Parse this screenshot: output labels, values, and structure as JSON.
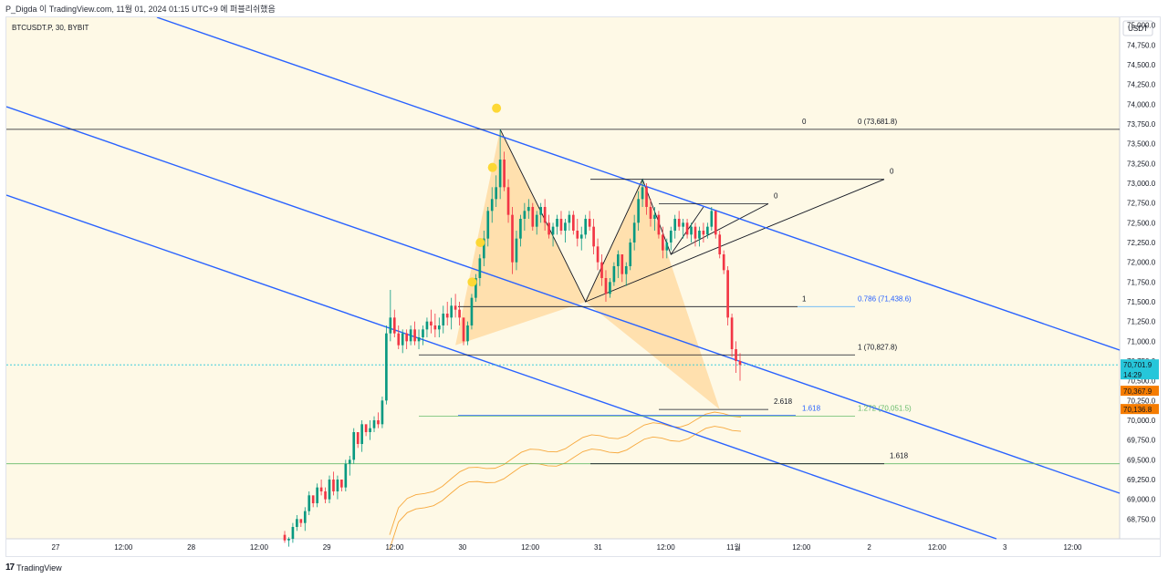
{
  "header": {
    "publish_line": "P_Digda 이 TradingView.com, 11월 01, 2024 01:15 UTC+9 에 퍼블리쉬했음"
  },
  "symbol_label": "BTCUSDT.P, 30, BYBIT",
  "footer": {
    "brand": "TradingView",
    "brand_icon": "tradingview-logo-icon"
  },
  "colors": {
    "background": "#fef9e6",
    "channel": "#2962ff",
    "pattern_fill": "#ffcc80",
    "marker": "#fdd835",
    "up": "#089981",
    "down": "#f23645",
    "ribbon": "#f7a83c",
    "price_badge": "#26c6da",
    "level_badge": "#f57c00"
  },
  "chart_data": {
    "type": "candlestick",
    "symbol": "BTCUSDT.P",
    "interval": "30",
    "exchange": "BYBIT",
    "currency": "USDT",
    "ylim": [
      68500,
      75100
    ],
    "price_ticks": [
      "75,000.0",
      "74,750.0",
      "74,500.0",
      "74,250.0",
      "74,000.0",
      "73,750.0",
      "73,500.0",
      "73,250.0",
      "73,000.0",
      "72,750.0",
      "72,500.0",
      "72,250.0",
      "72,000.0",
      "71,750.0",
      "71,500.0",
      "71,250.0",
      "71,000.0",
      "70,750.0",
      "70,500.0",
      "70,250.0",
      "70,000.0",
      "69,750.0",
      "69,500.0",
      "69,250.0",
      "69,000.0",
      "68,750.0"
    ],
    "time_ticks": [
      "27",
      "12:00",
      "28",
      "12:00",
      "29",
      "12:00",
      "30",
      "12:00",
      "31",
      "12:00",
      "11월",
      "12:00",
      "2",
      "12:00",
      "3",
      "12:00"
    ],
    "candles_ohlc": [
      [
        68550,
        68600,
        68450,
        68480
      ],
      [
        68480,
        68520,
        68400,
        68500
      ],
      [
        68500,
        68700,
        68450,
        68650
      ],
      [
        68650,
        68800,
        68600,
        68750
      ],
      [
        68750,
        68700,
        68650,
        68700
      ],
      [
        68700,
        68900,
        68600,
        68850
      ],
      [
        68850,
        69100,
        68800,
        69050
      ],
      [
        69050,
        69000,
        68900,
        68950
      ],
      [
        68950,
        69200,
        68900,
        69150
      ],
      [
        69150,
        69250,
        69050,
        69100
      ],
      [
        69100,
        69150,
        68950,
        69000
      ],
      [
        69000,
        69300,
        68950,
        69250
      ],
      [
        69250,
        69350,
        69050,
        69100
      ],
      [
        69100,
        69300,
        69000,
        69250
      ],
      [
        69250,
        69200,
        69100,
        69150
      ],
      [
        69150,
        69500,
        69100,
        69450
      ],
      [
        69450,
        69550,
        69300,
        69500
      ],
      [
        69500,
        69900,
        69450,
        69850
      ],
      [
        69850,
        69800,
        69650,
        69700
      ],
      [
        69700,
        70000,
        69600,
        69950
      ],
      [
        69950,
        69900,
        69800,
        69850
      ],
      [
        69850,
        70000,
        69750,
        69900
      ],
      [
        69900,
        70050,
        69850,
        70000
      ],
      [
        70000,
        70100,
        69900,
        69950
      ],
      [
        69950,
        70300,
        69900,
        70250
      ],
      [
        70250,
        71200,
        70200,
        71100
      ],
      [
        71100,
        71650,
        71000,
        71300
      ],
      [
        71300,
        71400,
        71050,
        71100
      ],
      [
        71100,
        71200,
        70900,
        70950
      ],
      [
        70950,
        71150,
        70850,
        71100
      ],
      [
        71100,
        71150,
        70900,
        71000
      ],
      [
        71000,
        71200,
        70950,
        71150
      ],
      [
        71150,
        71250,
        70950,
        71000
      ],
      [
        71000,
        71150,
        70900,
        71050
      ],
      [
        71050,
        71200,
        70950,
        71150
      ],
      [
        71150,
        71300,
        71050,
        71250
      ],
      [
        71250,
        71400,
        71100,
        71200
      ],
      [
        71200,
        71350,
        71050,
        71150
      ],
      [
        71150,
        71300,
        71050,
        71200
      ],
      [
        71200,
        71450,
        71100,
        71350
      ],
      [
        71350,
        71500,
        71200,
        71300
      ],
      [
        71300,
        71550,
        71150,
        71450
      ],
      [
        71450,
        71600,
        71300,
        71400
      ],
      [
        71400,
        71500,
        71200,
        71300
      ],
      [
        71300,
        71200,
        70950,
        71000
      ],
      [
        71000,
        71250,
        70950,
        71200
      ],
      [
        71200,
        71600,
        71150,
        71550
      ],
      [
        71550,
        71850,
        71500,
        71800
      ],
      [
        71800,
        72100,
        71700,
        72050
      ],
      [
        72050,
        72400,
        71950,
        72300
      ],
      [
        72300,
        72700,
        72200,
        72650
      ],
      [
        72650,
        72950,
        72500,
        72800
      ],
      [
        72800,
        73100,
        72700,
        72950
      ],
      [
        72950,
        73681,
        72800,
        73300
      ],
      [
        73300,
        73400,
        72900,
        72950
      ],
      [
        72950,
        73050,
        72500,
        72600
      ],
      [
        72600,
        72700,
        71850,
        72000
      ],
      [
        72000,
        72400,
        71900,
        72300
      ],
      [
        72300,
        72600,
        72200,
        72550
      ],
      [
        72550,
        72750,
        72400,
        72650
      ],
      [
        72650,
        72800,
        72550,
        72700
      ],
      [
        72700,
        72750,
        72400,
        72450
      ],
      [
        72450,
        72650,
        72350,
        72600
      ],
      [
        72600,
        72750,
        72500,
        72700
      ],
      [
        72700,
        72800,
        72400,
        72500
      ],
      [
        72500,
        72600,
        72300,
        72350
      ],
      [
        72350,
        72500,
        72200,
        72450
      ],
      [
        72450,
        72600,
        72350,
        72550
      ],
      [
        72550,
        72650,
        72350,
        72400
      ],
      [
        72400,
        72550,
        72250,
        72500
      ],
      [
        72500,
        72650,
        72400,
        72600
      ],
      [
        72600,
        72650,
        72350,
        72400
      ],
      [
        72400,
        72550,
        72200,
        72300
      ],
      [
        72300,
        72450,
        72150,
        72350
      ],
      [
        72350,
        72600,
        72300,
        72550
      ],
      [
        72550,
        72650,
        72400,
        72450
      ],
      [
        72450,
        72550,
        72100,
        72200
      ],
      [
        72200,
        72300,
        71900,
        72000
      ],
      [
        72000,
        72100,
        71700,
        71800
      ],
      [
        71800,
        71900,
        71500,
        71600
      ],
      [
        71600,
        71800,
        71550,
        71750
      ],
      [
        71750,
        72000,
        71700,
        71950
      ],
      [
        71950,
        72150,
        71800,
        72100
      ],
      [
        72100,
        72050,
        71750,
        71850
      ],
      [
        71850,
        72000,
        71700,
        71950
      ],
      [
        71950,
        72300,
        71900,
        72250
      ],
      [
        72250,
        72600,
        72150,
        72500
      ],
      [
        72500,
        72900,
        72400,
        72800
      ],
      [
        72800,
        73050,
        72700,
        72950
      ],
      [
        72950,
        73000,
        72600,
        72700
      ],
      [
        72700,
        72800,
        72450,
        72550
      ],
      [
        72550,
        72700,
        72400,
        72600
      ],
      [
        72600,
        72650,
        72300,
        72350
      ],
      [
        72350,
        72450,
        72050,
        72150
      ],
      [
        72150,
        72300,
        72050,
        72250
      ],
      [
        72250,
        72450,
        72150,
        72400
      ],
      [
        72400,
        72600,
        72300,
        72550
      ],
      [
        72550,
        72650,
        72400,
        72450
      ],
      [
        72450,
        72550,
        72300,
        72500
      ],
      [
        72500,
        72550,
        72300,
        72350
      ],
      [
        72350,
        72500,
        72250,
        72450
      ],
      [
        72450,
        72500,
        72200,
        72300
      ],
      [
        72300,
        72450,
        72200,
        72400
      ],
      [
        72400,
        72500,
        72250,
        72350
      ],
      [
        72350,
        72500,
        72300,
        72450
      ],
      [
        72450,
        72700,
        72400,
        72650
      ],
      [
        72650,
        72600,
        72300,
        72350
      ],
      [
        72350,
        72400,
        72050,
        72100
      ],
      [
        72100,
        72150,
        71850,
        71900
      ],
      [
        71900,
        71950,
        71200,
        71300
      ],
      [
        71300,
        71350,
        70800,
        70900
      ],
      [
        70900,
        71000,
        70600,
        70750
      ],
      [
        70750,
        70850,
        70500,
        70701
      ]
    ],
    "last_price": "70,701.9",
    "countdown": "14:29",
    "marked_prices": [
      "70,367.9",
      "70,136.8"
    ],
    "fib_labels": [
      {
        "level": "0",
        "price": "0 (73,681.8)"
      },
      {
        "level": "1",
        "price": "0.786 (71,438.6)"
      },
      {
        "level": "1 (70,827.8)",
        "price": ""
      },
      {
        "level": "1.618",
        "price": "1.272 (70,051.5)"
      },
      {
        "level": "0",
        "price": ""
      },
      {
        "level": "0",
        "price": ""
      },
      {
        "level": "2.618",
        "price": ""
      },
      {
        "level": "1.618",
        "price": ""
      }
    ],
    "horizontal_levels": [
      73681.8,
      71438.6,
      70827.8,
      70051.5,
      69450
    ],
    "grid": false
  }
}
